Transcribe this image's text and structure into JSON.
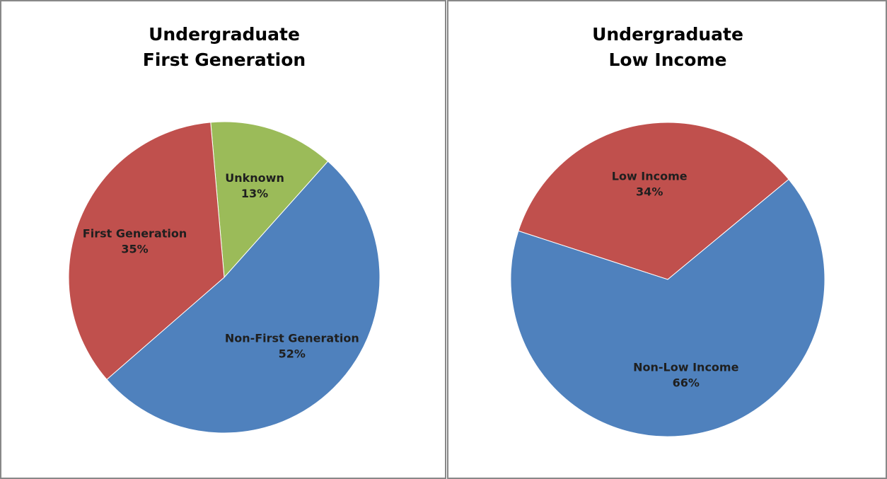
{
  "chart_data": [
    {
      "type": "pie",
      "title": [
        "Undergraduate",
        "First Generation"
      ],
      "categories": [
        "Unknown",
        "Non-First Generation",
        "First Generation"
      ],
      "values": [
        13,
        52,
        35
      ],
      "value_labels": [
        "13%",
        "52%",
        "35%"
      ],
      "colors": [
        "#9bbb59",
        "#4f81bd",
        "#c0504d"
      ]
    },
    {
      "type": "pie",
      "title": [
        "Undergraduate",
        "Low Income"
      ],
      "categories": [
        "Low Income",
        "Non-Low Income"
      ],
      "values": [
        34,
        66
      ],
      "value_labels": [
        "34%",
        "66%"
      ],
      "colors": [
        "#c0504d",
        "#4f81bd"
      ]
    }
  ]
}
